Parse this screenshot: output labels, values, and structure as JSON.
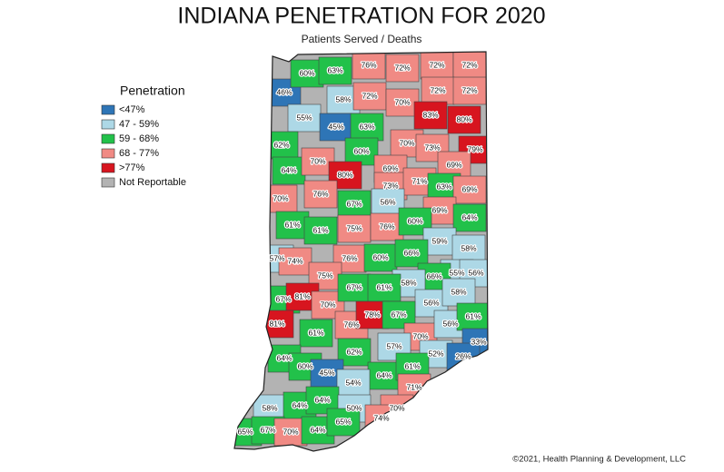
{
  "title": "INDIANA PENETRATION FOR 2020",
  "subtitle": "Patients Served / Deaths",
  "legend": {
    "title": "Penetration",
    "items": [
      {
        "label": "<47%",
        "color": "#2e75b6"
      },
      {
        "label": "47 - 59%",
        "color": "#add8e6"
      },
      {
        "label": "59 - 68%",
        "color": "#22c14a"
      },
      {
        "label": "68 - 77%",
        "color": "#f08a84"
      },
      {
        "label": ">77%",
        "color": "#d7151f"
      },
      {
        "label": "Not Reportable",
        "color": "#b3b3b3"
      }
    ]
  },
  "regions": [
    {
      "label": "46%",
      "class": 0
    },
    {
      "label": "60%",
      "class": 2
    },
    {
      "label": "63%",
      "class": 2
    },
    {
      "label": "76%",
      "class": 3
    },
    {
      "label": "72%",
      "class": 3
    },
    {
      "label": "72%",
      "class": 3
    },
    {
      "label": "72%",
      "class": 3
    },
    {
      "label": "58%",
      "class": 1
    },
    {
      "label": "72%",
      "class": 3
    },
    {
      "label": "70%",
      "class": 3
    },
    {
      "label": "72%",
      "class": 3
    },
    {
      "label": "72%",
      "class": 3
    },
    {
      "label": "55%",
      "class": 1
    },
    {
      "label": "45%",
      "class": 0
    },
    {
      "label": "63%",
      "class": 2
    },
    {
      "label": "83%",
      "class": 4
    },
    {
      "label": "80%",
      "class": 4
    },
    {
      "label": "62%",
      "class": 2
    },
    {
      "label": "60%",
      "class": 2
    },
    {
      "label": "70%",
      "class": 3
    },
    {
      "label": "73%",
      "class": 3
    },
    {
      "label": "79%",
      "class": 4
    },
    {
      "label": "64%",
      "class": 2
    },
    {
      "label": "70%",
      "class": 3
    },
    {
      "label": "80%",
      "class": 4
    },
    {
      "label": "69%",
      "class": 3
    },
    {
      "label": "69%",
      "class": 3
    },
    {
      "label": "73%",
      "class": 3
    },
    {
      "label": "71%",
      "class": 3
    },
    {
      "label": "63%",
      "class": 2
    },
    {
      "label": "69%",
      "class": 3
    },
    {
      "label": "70%",
      "class": 3
    },
    {
      "label": "76%",
      "class": 3
    },
    {
      "label": "67%",
      "class": 2
    },
    {
      "label": "56%",
      "class": 1
    },
    {
      "label": "69%",
      "class": 3
    },
    {
      "label": "61%",
      "class": 2
    },
    {
      "label": "61%",
      "class": 2
    },
    {
      "label": "75%",
      "class": 3
    },
    {
      "label": "76%",
      "class": 3
    },
    {
      "label": "60%",
      "class": 2
    },
    {
      "label": "64%",
      "class": 2
    },
    {
      "label": "59%",
      "class": 1
    },
    {
      "label": "58%",
      "class": 1
    },
    {
      "label": "57%",
      "class": 1
    },
    {
      "label": "74%",
      "class": 3
    },
    {
      "label": "76%",
      "class": 3
    },
    {
      "label": "60%",
      "class": 2
    },
    {
      "label": "66%",
      "class": 2
    },
    {
      "label": "55%",
      "class": 1
    },
    {
      "label": "56%",
      "class": 1
    },
    {
      "label": "66%",
      "class": 2
    },
    {
      "label": "75%",
      "class": 3
    },
    {
      "label": "58%",
      "class": 1
    },
    {
      "label": "67%",
      "class": 2
    },
    {
      "label": "81%",
      "class": 4
    },
    {
      "label": "70%",
      "class": 3
    },
    {
      "label": "67%",
      "class": 2
    },
    {
      "label": "61%",
      "class": 2
    },
    {
      "label": "56%",
      "class": 1
    },
    {
      "label": "58%",
      "class": 1
    },
    {
      "label": "81%",
      "class": 4
    },
    {
      "label": "61%",
      "class": 2
    },
    {
      "label": "76%",
      "class": 3
    },
    {
      "label": "78%",
      "class": 4
    },
    {
      "label": "67%",
      "class": 2
    },
    {
      "label": "70%",
      "class": 3
    },
    {
      "label": "56%",
      "class": 1
    },
    {
      "label": "61%",
      "class": 2
    },
    {
      "label": "64%",
      "class": 2
    },
    {
      "label": "62%",
      "class": 2
    },
    {
      "label": "57%",
      "class": 1
    },
    {
      "label": "52%",
      "class": 1
    },
    {
      "label": "33%",
      "class": 0
    },
    {
      "label": "26%",
      "class": 0
    },
    {
      "label": "60%",
      "class": 2
    },
    {
      "label": "45%",
      "class": 0
    },
    {
      "label": "64%",
      "class": 2
    },
    {
      "label": "61%",
      "class": 2
    },
    {
      "label": "54%",
      "class": 1
    },
    {
      "label": "71%",
      "class": 3
    },
    {
      "label": "58%",
      "class": 1
    },
    {
      "label": "64%",
      "class": 2
    },
    {
      "label": "64%",
      "class": 2
    },
    {
      "label": "50%",
      "class": 1
    },
    {
      "label": "70%",
      "class": 3
    },
    {
      "label": "65%",
      "class": 2
    },
    {
      "label": "67%",
      "class": 2
    },
    {
      "label": "70%",
      "class": 3
    },
    {
      "label": "64%",
      "class": 2
    },
    {
      "label": "65%",
      "class": 2
    },
    {
      "label": "74%",
      "class": 3
    }
  ],
  "credit": "©2021, Health Planning & Development, LLC"
}
